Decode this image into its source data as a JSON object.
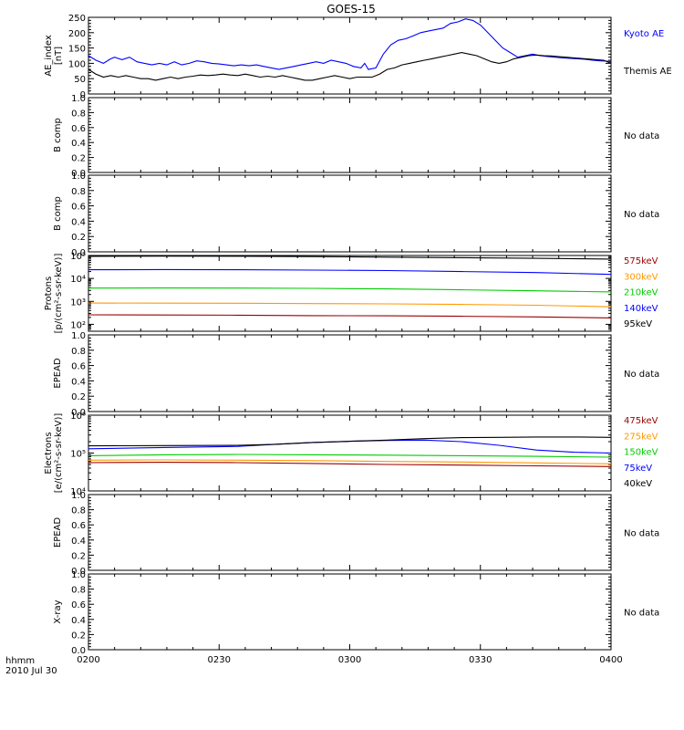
{
  "title": "GOES-15",
  "footer": {
    "label_1": "hhmm",
    "label_2": "2010 Jul 30"
  },
  "colors": {
    "axis": "#000000",
    "black": "#000000",
    "blue": "#0000ff",
    "green": "#00cc00",
    "orange": "#ff9900",
    "red": "#990000"
  },
  "chart_data": [
    {
      "type": "line",
      "panel": "ae",
      "ylabel": "AE_index\n[nT]",
      "ylim": [
        0,
        250
      ],
      "yticks": [
        "0",
        "50",
        "100",
        "150",
        "200",
        "250"
      ],
      "x": [
        "0200",
        "0400"
      ],
      "series": [
        {
          "name": "Kyoto AE",
          "color": "#0000ff",
          "points": [
            [
              0,
              125
            ],
            [
              2,
              110
            ],
            [
              4,
              100
            ],
            [
              6,
              115
            ],
            [
              7,
              120
            ],
            [
              9,
              112
            ],
            [
              11,
              120
            ],
            [
              13,
              105
            ],
            [
              15,
              100
            ],
            [
              17,
              95
            ],
            [
              19,
              100
            ],
            [
              21,
              95
            ],
            [
              23,
              105
            ],
            [
              25,
              95
            ],
            [
              27,
              100
            ],
            [
              29,
              108
            ],
            [
              31,
              105
            ],
            [
              33,
              100
            ],
            [
              35,
              98
            ],
            [
              37,
              95
            ],
            [
              39,
              92
            ],
            [
              41,
              95
            ],
            [
              43,
              92
            ],
            [
              45,
              95
            ],
            [
              47,
              90
            ],
            [
              49,
              85
            ],
            [
              51,
              80
            ],
            [
              53,
              85
            ],
            [
              55,
              90
            ],
            [
              57,
              95
            ],
            [
              59,
              100
            ],
            [
              61,
              105
            ],
            [
              63,
              100
            ],
            [
              65,
              110
            ],
            [
              67,
              105
            ],
            [
              69,
              100
            ],
            [
              71,
              90
            ],
            [
              73,
              85
            ],
            [
              74,
              100
            ],
            [
              75,
              80
            ],
            [
              77,
              85
            ],
            [
              79,
              130
            ],
            [
              81,
              160
            ],
            [
              83,
              175
            ],
            [
              85,
              180
            ],
            [
              87,
              190
            ],
            [
              89,
              200
            ],
            [
              91,
              205
            ],
            [
              93,
              210
            ],
            [
              95,
              215
            ],
            [
              97,
              230
            ],
            [
              99,
              235
            ],
            [
              101,
              245
            ],
            [
              103,
              240
            ],
            [
              105,
              225
            ],
            [
              107,
              200
            ],
            [
              109,
              175
            ],
            [
              111,
              150
            ],
            [
              113,
              135
            ],
            [
              115,
              120
            ],
            [
              117,
              125
            ],
            [
              119,
              130
            ],
            [
              121,
              125
            ],
            [
              123,
              122
            ],
            [
              125,
              120
            ],
            [
              127,
              118
            ],
            [
              129,
              116
            ],
            [
              131,
              115
            ],
            [
              133,
              113
            ],
            [
              135,
              110
            ],
            [
              137,
              108
            ],
            [
              139,
              107
            ],
            [
              140,
              105
            ]
          ]
        },
        {
          "name": "Themis AE",
          "color": "#000000",
          "points": [
            [
              0,
              80
            ],
            [
              2,
              65
            ],
            [
              4,
              55
            ],
            [
              6,
              60
            ],
            [
              8,
              55
            ],
            [
              10,
              60
            ],
            [
              12,
              55
            ],
            [
              14,
              50
            ],
            [
              16,
              50
            ],
            [
              18,
              45
            ],
            [
              20,
              50
            ],
            [
              22,
              55
            ],
            [
              24,
              50
            ],
            [
              26,
              55
            ],
            [
              28,
              58
            ],
            [
              30,
              62
            ],
            [
              32,
              60
            ],
            [
              34,
              62
            ],
            [
              36,
              65
            ],
            [
              38,
              62
            ],
            [
              40,
              60
            ],
            [
              42,
              65
            ],
            [
              44,
              60
            ],
            [
              46,
              55
            ],
            [
              48,
              58
            ],
            [
              50,
              55
            ],
            [
              52,
              60
            ],
            [
              54,
              55
            ],
            [
              56,
              50
            ],
            [
              58,
              45
            ],
            [
              60,
              45
            ],
            [
              62,
              50
            ],
            [
              64,
              55
            ],
            [
              66,
              60
            ],
            [
              68,
              55
            ],
            [
              70,
              50
            ],
            [
              72,
              55
            ],
            [
              74,
              55
            ],
            [
              76,
              55
            ],
            [
              78,
              65
            ],
            [
              80,
              80
            ],
            [
              82,
              85
            ],
            [
              84,
              95
            ],
            [
              86,
              100
            ],
            [
              88,
              105
            ],
            [
              90,
              110
            ],
            [
              92,
              115
            ],
            [
              94,
              120
            ],
            [
              96,
              125
            ],
            [
              98,
              130
            ],
            [
              100,
              135
            ],
            [
              102,
              130
            ],
            [
              104,
              125
            ],
            [
              106,
              115
            ],
            [
              108,
              105
            ],
            [
              110,
              100
            ],
            [
              112,
              105
            ],
            [
              114,
              115
            ],
            [
              116,
              120
            ],
            [
              118,
              125
            ],
            [
              120,
              127
            ],
            [
              122,
              125
            ],
            [
              124,
              124
            ],
            [
              126,
              122
            ],
            [
              128,
              120
            ],
            [
              130,
              118
            ],
            [
              132,
              116
            ],
            [
              134,
              114
            ],
            [
              136,
              112
            ],
            [
              138,
              110
            ],
            [
              140,
              100
            ]
          ]
        }
      ]
    },
    {
      "type": "line",
      "panel": "bcomp1",
      "ylabel": "B comp",
      "ylim": [
        0,
        1
      ],
      "yticks": [
        "0.0",
        "0.2",
        "0.4",
        "0.6",
        "0.8",
        "1.0"
      ],
      "status": "No data"
    },
    {
      "type": "line",
      "panel": "bcomp2",
      "ylabel": "B comp",
      "ylim": [
        0,
        1
      ],
      "yticks": [
        "0.0",
        "0.2",
        "0.4",
        "0.6",
        "0.8",
        "1.0"
      ],
      "status": "No data"
    },
    {
      "type": "line",
      "panel": "protons",
      "ylabel": "Protons\n[p/(cm²-s-sr-keV)]",
      "scale": "log",
      "ylim": [
        50,
        100000
      ],
      "yticks": [
        "10²",
        "10³",
        "10⁴",
        "10⁵"
      ],
      "series": [
        {
          "name": "575keV",
          "color": "#990000",
          "points": [
            [
              0,
              260
            ],
            [
              20,
              255
            ],
            [
              40,
              250
            ],
            [
              60,
              240
            ],
            [
              80,
              235
            ],
            [
              100,
              225
            ],
            [
              120,
              210
            ],
            [
              140,
              190
            ]
          ]
        },
        {
          "name": "300keV",
          "color": "#ff9900",
          "points": [
            [
              0,
              850
            ],
            [
              20,
              840
            ],
            [
              40,
              830
            ],
            [
              60,
              800
            ],
            [
              80,
              780
            ],
            [
              100,
              740
            ],
            [
              120,
              680
            ],
            [
              140,
              580
            ]
          ]
        },
        {
          "name": "210keV",
          "color": "#00cc00",
          "points": [
            [
              0,
              3800
            ],
            [
              20,
              3850
            ],
            [
              40,
              3800
            ],
            [
              60,
              3700
            ],
            [
              80,
              3500
            ],
            [
              100,
              3200
            ],
            [
              120,
              2900
            ],
            [
              140,
              2600
            ]
          ]
        },
        {
          "name": "140keV",
          "color": "#0000ff",
          "points": [
            [
              0,
              24000
            ],
            [
              20,
              24500
            ],
            [
              40,
              24000
            ],
            [
              60,
              23000
            ],
            [
              80,
              22000
            ],
            [
              100,
              20000
            ],
            [
              120,
              18000
            ],
            [
              140,
              15000
            ]
          ]
        },
        {
          "name": "95keV",
          "color": "#000000",
          "points": [
            [
              0,
              92000
            ],
            [
              20,
              94000
            ],
            [
              40,
              93000
            ],
            [
              60,
              90000
            ],
            [
              80,
              85000
            ],
            [
              100,
              80000
            ],
            [
              120,
              75000
            ],
            [
              140,
              70000
            ]
          ]
        }
      ]
    },
    {
      "type": "line",
      "panel": "epead1",
      "ylabel": "EPEAD",
      "ylim": [
        0,
        1
      ],
      "yticks": [
        "0.0",
        "0.2",
        "0.4",
        "0.6",
        "0.8",
        "1.0"
      ],
      "status": "No data"
    },
    {
      "type": "line",
      "panel": "electrons",
      "ylabel": "Electrons\n[e/(cm²-s-sr-keV)]",
      "scale": "log",
      "ylim": [
        10000,
        1000000
      ],
      "yticks": [
        "10⁴",
        "10⁵",
        "10⁶"
      ],
      "series": [
        {
          "name": "475keV",
          "color": "#990000",
          "points": [
            [
              0,
              56000
            ],
            [
              20,
              57000
            ],
            [
              40,
              56000
            ],
            [
              60,
              53000
            ],
            [
              80,
              50000
            ],
            [
              100,
              48000
            ],
            [
              120,
              46000
            ],
            [
              140,
              44000
            ]
          ]
        },
        {
          "name": "275keV",
          "color": "#ff9900",
          "points": [
            [
              0,
              65000
            ],
            [
              20,
              66000
            ],
            [
              40,
              65000
            ],
            [
              60,
              63000
            ],
            [
              80,
              60000
            ],
            [
              100,
              58000
            ],
            [
              120,
              55000
            ],
            [
              140,
              52000
            ]
          ]
        },
        {
          "name": "150keV",
          "color": "#00cc00",
          "points": [
            [
              0,
              85000
            ],
            [
              20,
              90000
            ],
            [
              40,
              92000
            ],
            [
              60,
              90000
            ],
            [
              80,
              88000
            ],
            [
              100,
              85000
            ],
            [
              120,
              82000
            ],
            [
              140,
              78000
            ]
          ]
        },
        {
          "name": "75keV",
          "color": "#0000ff",
          "points": [
            [
              0,
              130000
            ],
            [
              20,
              140000
            ],
            [
              40,
              150000
            ],
            [
              50,
              170000
            ],
            [
              60,
              190000
            ],
            [
              70,
              205000
            ],
            [
              80,
              215000
            ],
            [
              90,
              220000
            ],
            [
              100,
              200000
            ],
            [
              110,
              160000
            ],
            [
              120,
              120000
            ],
            [
              130,
              105000
            ],
            [
              140,
              100000
            ]
          ]
        },
        {
          "name": "40keV",
          "color": "#000000",
          "points": [
            [
              0,
              155000
            ],
            [
              20,
              158000
            ],
            [
              40,
              160000
            ],
            [
              50,
              170000
            ],
            [
              60,
              190000
            ],
            [
              70,
              205000
            ],
            [
              80,
              220000
            ],
            [
              90,
              240000
            ],
            [
              100,
              255000
            ],
            [
              110,
              260000
            ],
            [
              120,
              265000
            ],
            [
              130,
              265000
            ],
            [
              140,
              260000
            ]
          ]
        }
      ]
    },
    {
      "type": "line",
      "panel": "epead2",
      "ylabel": "EPEAD",
      "ylim": [
        0,
        1
      ],
      "yticks": [
        "0.0",
        "0.2",
        "0.4",
        "0.6",
        "0.8",
        "1.0"
      ],
      "status": "No data"
    },
    {
      "type": "line",
      "panel": "xray",
      "ylabel": "X-ray",
      "ylim": [
        0,
        1
      ],
      "yticks": [
        "0.0",
        "0.2",
        "0.4",
        "0.6",
        "0.8",
        "1.0"
      ],
      "status": "No data",
      "xlabel": "",
      "xticks": [
        "0200",
        "0230",
        "0300",
        "0330",
        "0400"
      ]
    }
  ]
}
